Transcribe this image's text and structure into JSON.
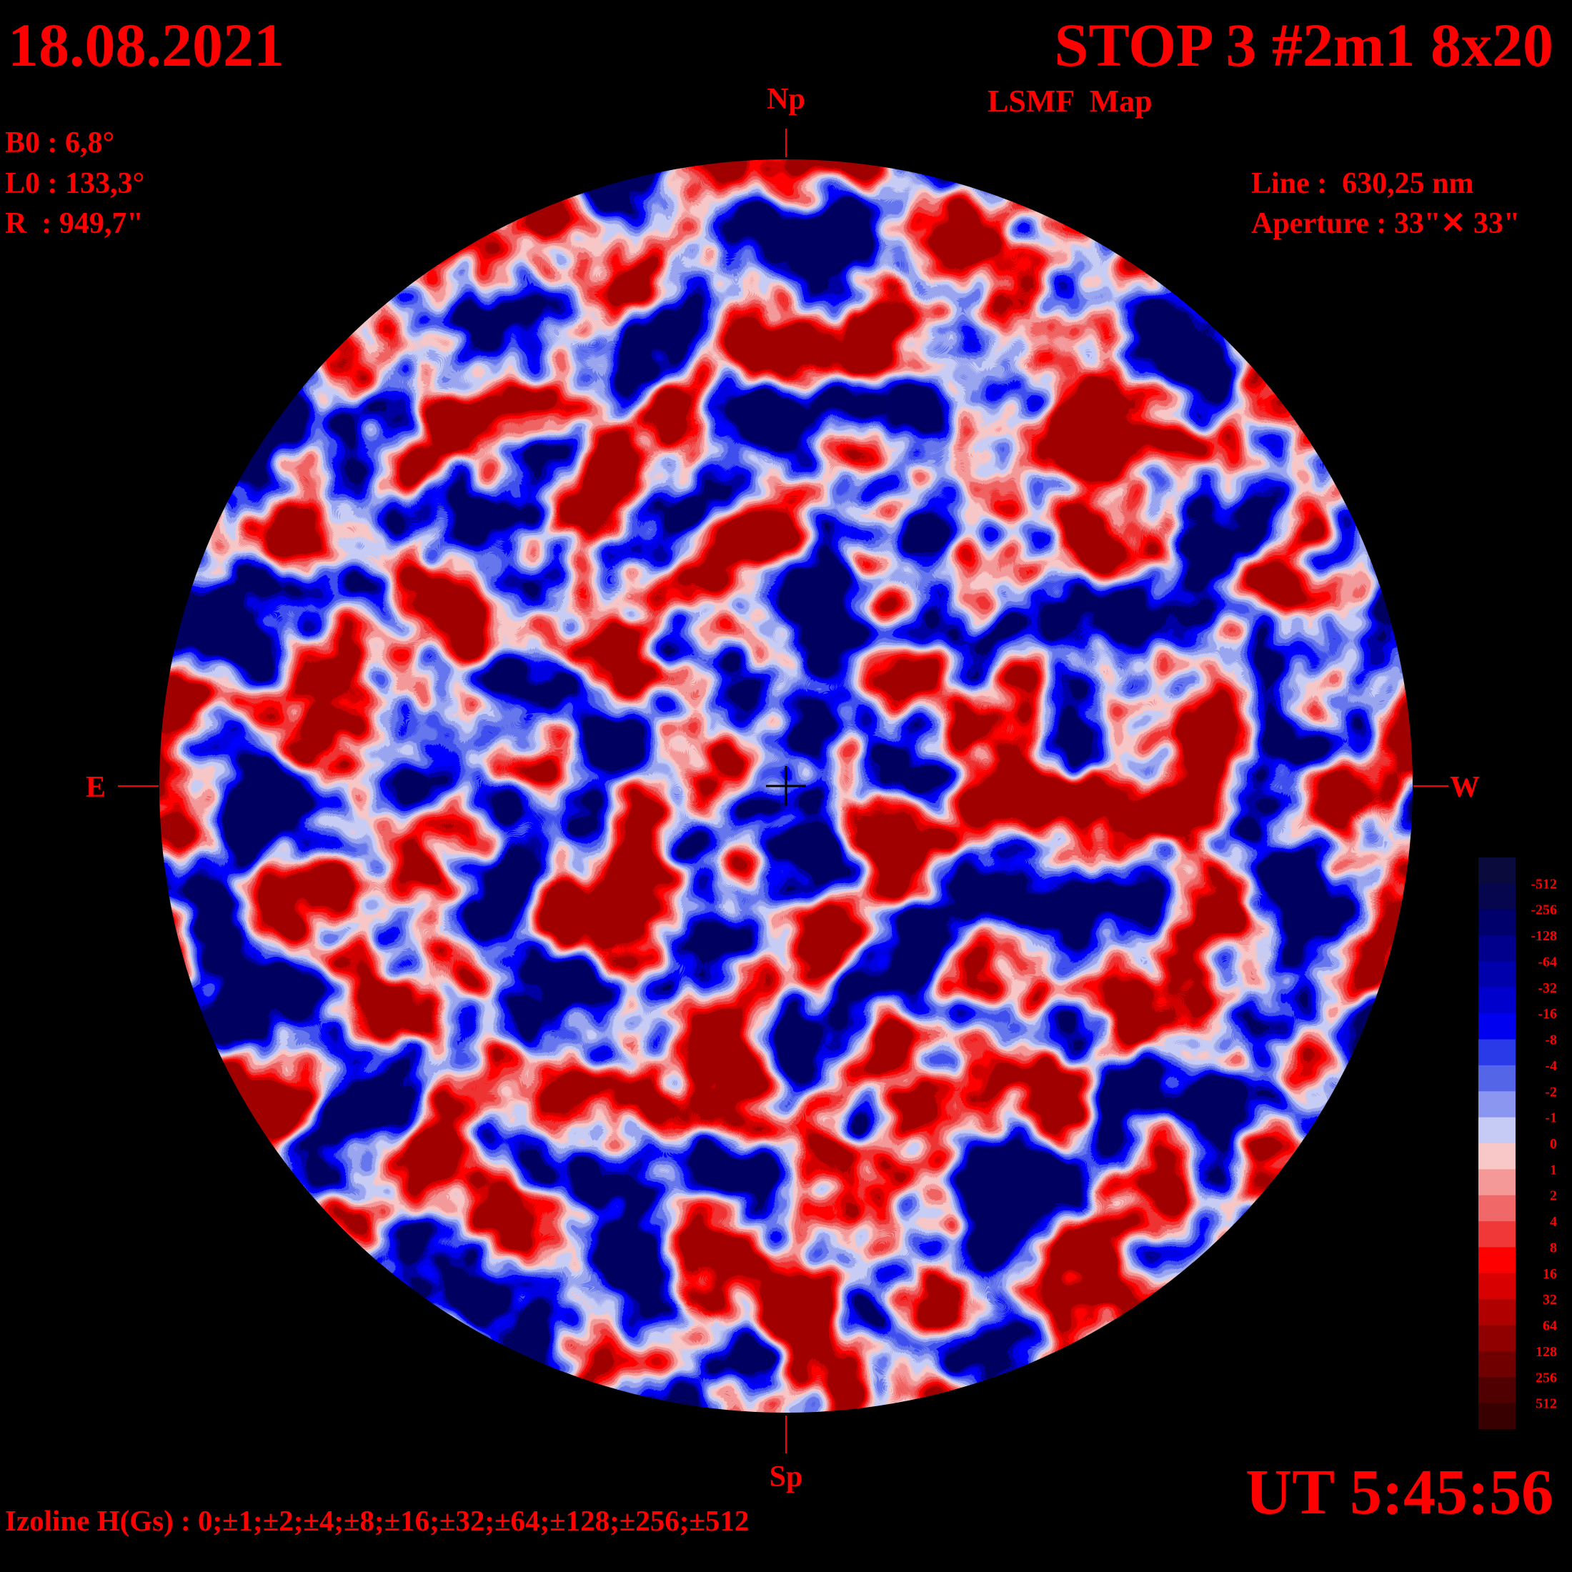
{
  "header": {
    "date": "18.08.2021",
    "title": "STOP 3 #2m1 8x20",
    "subtitle": "LSMF  Map",
    "time": "UT 5:45:56"
  },
  "params": {
    "b0": "B0 : 6,8°",
    "l0": "L0 : 133,3°",
    "r": "R  : 949,7\""
  },
  "instrument": {
    "line": "Line :  630,25 nm",
    "aperture": "Aperture : 33\"✕ 33\""
  },
  "directions": {
    "north": "Np",
    "south": "Sp",
    "east": "E",
    "west": "W"
  },
  "footer": {
    "izoline": "Izoline H(Gs) : 0;±1;±2;±4;±8;±16;±32;±64;±128;±256;±512"
  },
  "colorbar": {
    "labels": [
      "-512",
      "-256",
      "-128",
      "-64",
      "-32",
      "-16",
      "-8",
      "-4",
      "-2",
      "-1",
      "0",
      "1",
      "2",
      "4",
      "8",
      "16",
      "32",
      "64",
      "128",
      "256",
      "512"
    ],
    "colors": [
      "#0a0a3c",
      "#06064e",
      "#00006c",
      "#00008c",
      "#0000ac",
      "#0000cc",
      "#0000f0",
      "#2a3ae8",
      "#5565e8",
      "#8a96f0",
      "#c5cbf5",
      "#f8c8c8",
      "#f59898",
      "#f06868",
      "#f03838",
      "#ff0000",
      "#d80000",
      "#b00000",
      "#900000",
      "#700000",
      "#500000",
      "#380000"
    ]
  }
}
